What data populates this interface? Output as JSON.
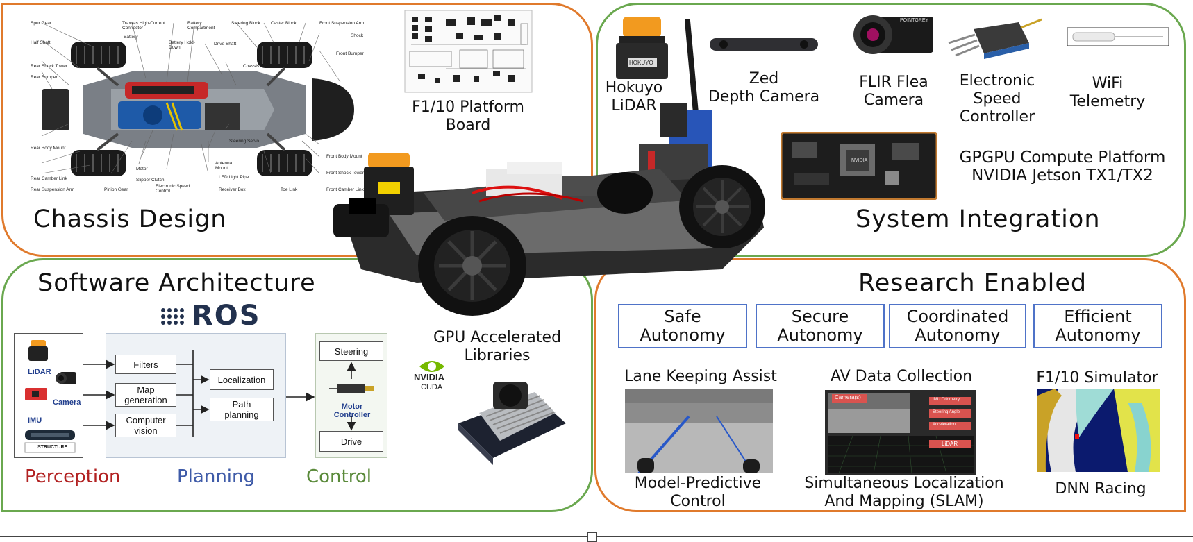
{
  "chassis": {
    "title": "Chassis Design",
    "labels": [
      "Spur Gear",
      "Half Shaft",
      "Rear Shock Tower",
      "Rear Bumper",
      "Rear Body Mount",
      "Rear Camber Link",
      "Rear Suspension Arm",
      "Traxxas High-Current Connector",
      "Battery",
      "Battery Hold-Down",
      "Battery Compartment",
      "Steering Block",
      "Caster Block",
      "Front Suspension Arm",
      "Shock",
      "Front Bumper",
      "Drive Shaft",
      "Chassis",
      "Steering Servo",
      "Antenna Mount",
      "LED Light Pipe",
      "Receiver Box",
      "Toe Link",
      "Front Body Mount",
      "Front Shock Tower",
      "Front Camber Link",
      "Motor",
      "Slipper Clutch",
      "Pinion Gear",
      "Electronic Speed Control"
    ]
  },
  "board": {
    "label_line1": "F1/10 Platform",
    "label_line2": "Board"
  },
  "system": {
    "title": "System Integration",
    "components": [
      {
        "line1": "Hokuyo",
        "line2": "LiDAR"
      },
      {
        "line1": "Zed",
        "line2": "Depth Camera"
      },
      {
        "line1": "FLIR Flea",
        "line2": "Camera"
      },
      {
        "line1": "Electronic",
        "line2": "Speed",
        "line3": "Controller"
      },
      {
        "line1": "WiFi",
        "line2": "Telemetry"
      }
    ],
    "gpgpu_line1": "GPGPU Compute Platform",
    "gpgpu_line2": "NVIDIA Jetson TX1/TX2",
    "hokuyo_badge": "HOKUYO",
    "pointgrey_badge": "POINTGREY",
    "nvidia_chip": "NVIDIA"
  },
  "software": {
    "title": "Software Architecture",
    "ros": "ROS",
    "sensors": {
      "lidar": "LiDAR",
      "camera": "Camera",
      "imu": "IMU",
      "structure": "STRUCTURE"
    },
    "planning_boxes": [
      "Filters",
      "Map generation",
      "Computer vision"
    ],
    "planning_boxes2": [
      "Localization",
      "Path planning"
    ],
    "control_boxes": {
      "steering": "Steering",
      "motor": "Motor Controller",
      "drive": "Drive"
    },
    "legend": {
      "perception": "Perception",
      "planning": "Planning",
      "control": "Control"
    },
    "legend_colors": {
      "perception": "#b22222",
      "planning": "#3f5ba8",
      "control": "#5a8a3a"
    },
    "gpu_line1": "GPU Accelerated",
    "gpu_line2": "Libraries",
    "nvidia": "NVIDIA",
    "cuda": "CUDA"
  },
  "research": {
    "title": "Research Enabled",
    "boxes": [
      {
        "line1": "Safe",
        "line2": "Autonomy"
      },
      {
        "line1": "Secure",
        "line2": "Autonomy"
      },
      {
        "line1": "Coordinated",
        "line2": "Autonomy"
      },
      {
        "line1": "Efficient",
        "line2": "Autonomy"
      }
    ],
    "top_captions": [
      "Lane Keeping Assist",
      "AV Data Collection",
      "F1/10 Simulator"
    ],
    "bottom_captions": [
      {
        "line1": "Model-Predictive",
        "line2": "Control"
      },
      {
        "line1": "Simultaneous Localization",
        "line2": "And Mapping (SLAM)"
      },
      {
        "line1": "DNN Racing",
        "line2": ""
      }
    ],
    "data_panel": {
      "camera": "Camera(s)",
      "imu": "IMU Odometry",
      "steering": "Steering Angle",
      "accel": "Acceleration",
      "lidar": "LiDAR"
    }
  },
  "colors": {
    "orange_border": "#e07a2c",
    "green_border": "#6aa84f",
    "blue_box": "#4f73c8"
  }
}
